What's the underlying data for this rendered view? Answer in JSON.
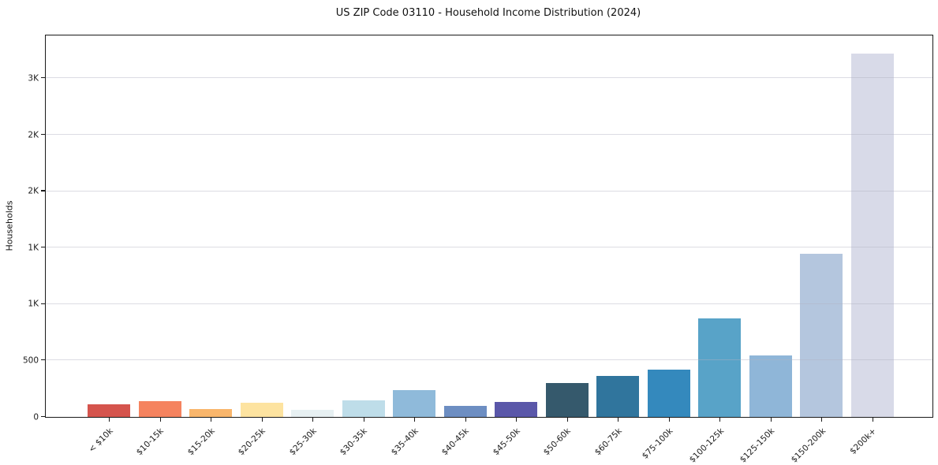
{
  "title": "US ZIP Code 03110 - Household Income Distribution (2024)",
  "chart_data": {
    "type": "bar",
    "title": "US ZIP Code 03110 - Household Income Distribution (2024)",
    "xlabel": "",
    "ylabel": "Households",
    "categories": [
      "< $10k",
      "$10-15k",
      "$15-20k",
      "$20-25k",
      "$25-30k",
      "$30-35k",
      "$35-40k",
      "$40-45k",
      "$45-50k",
      "$50-60k",
      "$60-75k",
      "$75-100k",
      "$100-125k",
      "$125-150k",
      "$150-200k",
      "$200k+"
    ],
    "values": [
      115,
      140,
      72,
      127,
      62,
      150,
      240,
      100,
      130,
      300,
      360,
      420,
      870,
      545,
      1445,
      3220
    ],
    "bar_colors": [
      "#d5544d",
      "#f5835f",
      "#f9b66c",
      "#fde3a0",
      "#e7f0f2",
      "#bedde9",
      "#8fbada",
      "#6d8ec2",
      "#5a57a9",
      "#35596c",
      "#30759d",
      "#3489bd",
      "#58a3c8",
      "#8fb6d8",
      "#b4c6de",
      "#d8dae8"
    ],
    "ylim": [
      0,
      3380
    ],
    "yticks": [
      {
        "value": 0,
        "label": "0"
      },
      {
        "value": 500,
        "label": "500"
      },
      {
        "value": 1000,
        "label": "1K"
      },
      {
        "value": 1500,
        "label": "1K"
      },
      {
        "value": 2000,
        "label": "2K"
      },
      {
        "value": 2500,
        "label": "2K"
      },
      {
        "value": 3000,
        "label": "3K"
      }
    ],
    "grid": "horizontal",
    "legend": "none",
    "background_color": "#ffffff",
    "spine_color": "#1a1a1a",
    "grid_color": "#e9e9ef"
  }
}
